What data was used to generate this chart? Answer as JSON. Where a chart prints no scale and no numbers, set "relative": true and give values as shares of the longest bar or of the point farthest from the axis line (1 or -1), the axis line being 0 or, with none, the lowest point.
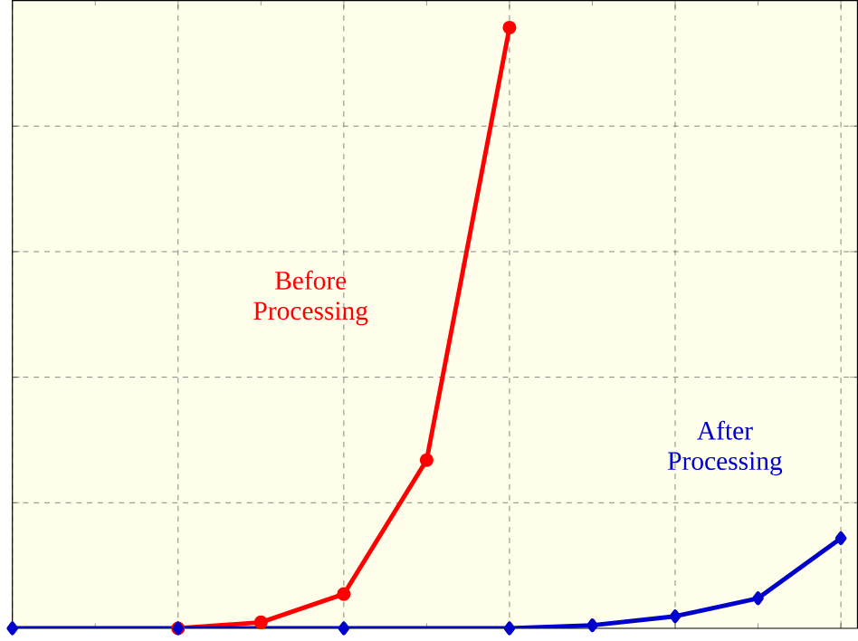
{
  "chart_data": {
    "type": "line",
    "relative": true,
    "grid": true,
    "line_style": "solid",
    "categories": [
      null,
      null,
      null,
      null,
      null,
      null,
      null,
      null,
      null,
      null,
      null
    ],
    "series": [
      {
        "name": "Before Processing",
        "marker": "circle",
        "color": "#ff0000",
        "values": [
          null,
          null,
          0,
          0.01,
          0.057,
          0.28,
          1,
          null,
          null,
          null,
          null
        ]
      },
      {
        "name": "After Processing",
        "marker": "diamond",
        "color": "#0000cc",
        "values": [
          0,
          null,
          0,
          null,
          0,
          null,
          0,
          0.005,
          0.02,
          0.05,
          0.15
        ]
      }
    ]
  }
}
